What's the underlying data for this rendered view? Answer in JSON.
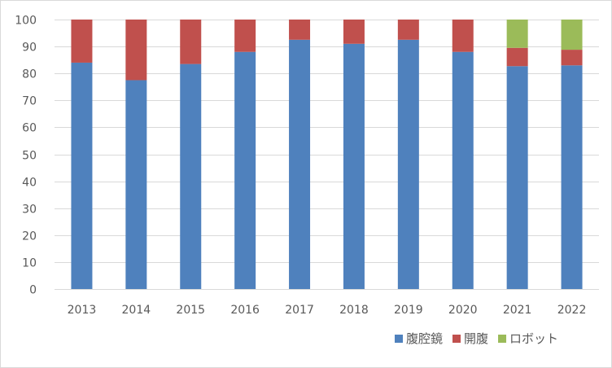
{
  "chart_data": {
    "type": "bar",
    "stacked": true,
    "title": "",
    "xlabel": "",
    "ylabel": "",
    "categories": [
      "2013",
      "2014",
      "2015",
      "2016",
      "2017",
      "2018",
      "2019",
      "2020",
      "2021",
      "2022"
    ],
    "series": [
      {
        "name": "腹腔鏡",
        "color": "#4f81bd",
        "values": [
          84,
          77.5,
          83.5,
          88,
          92.5,
          91,
          92.5,
          88,
          82.7,
          83
        ]
      },
      {
        "name": "開腹",
        "color": "#c0504d",
        "values": [
          16,
          22.5,
          16.5,
          12,
          7.5,
          9,
          7.5,
          12,
          6.8,
          5.8
        ]
      },
      {
        "name": "ロボット",
        "color": "#9bbb59",
        "values": [
          0,
          0,
          0,
          0,
          0,
          0,
          0,
          0,
          10.5,
          11.2
        ]
      }
    ],
    "ylim": [
      0,
      100
    ],
    "yticks": [
      0,
      10,
      20,
      30,
      40,
      50,
      60,
      70,
      80,
      90,
      100
    ],
    "grid": true,
    "legend_position": "bottom-right"
  }
}
